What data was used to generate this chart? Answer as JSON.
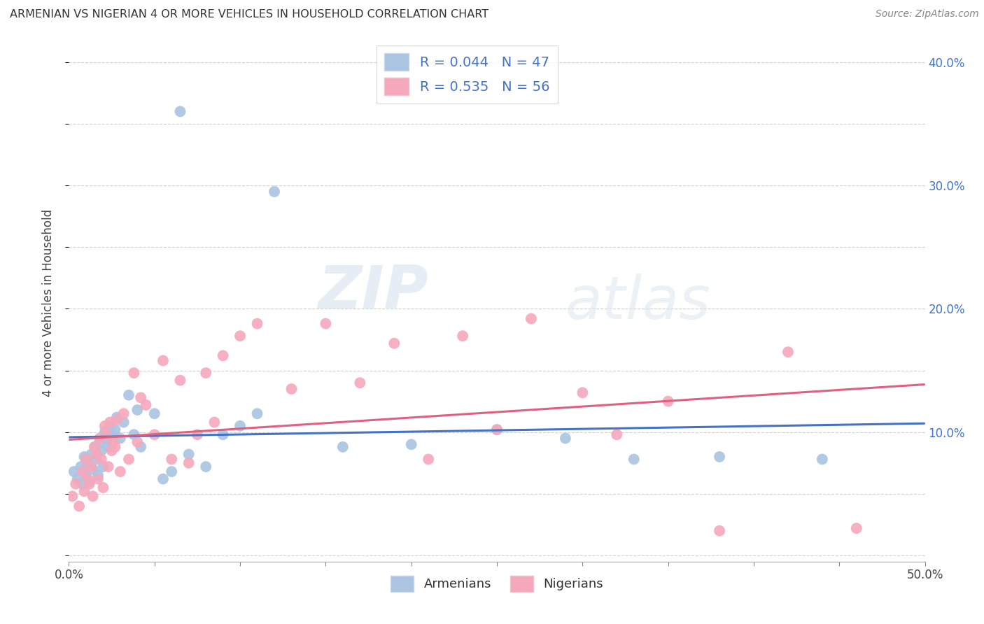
{
  "title": "ARMENIAN VS NIGERIAN 4 OR MORE VEHICLES IN HOUSEHOLD CORRELATION CHART",
  "source": "Source: ZipAtlas.com",
  "ylabel": "4 or more Vehicles in Household",
  "xlim": [
    0.0,
    0.5
  ],
  "ylim": [
    -0.005,
    0.415
  ],
  "armenian_R": 0.044,
  "armenian_N": 47,
  "nigerian_R": 0.535,
  "nigerian_N": 56,
  "armenian_color": "#aac4e2",
  "nigerian_color": "#f5a8bc",
  "armenian_line_color": "#4472c4",
  "nigerian_line_color": "#e06080",
  "watermark_zip": "ZIP",
  "watermark_atlas": "atlas",
  "legend_armenians": "Armenians",
  "legend_nigerians": "Nigerians",
  "armenian_x": [
    0.003,
    0.005,
    0.007,
    0.008,
    0.009,
    0.01,
    0.011,
    0.012,
    0.013,
    0.014,
    0.015,
    0.016,
    0.017,
    0.018,
    0.019,
    0.02,
    0.021,
    0.022,
    0.023,
    0.024,
    0.025,
    0.026,
    0.027,
    0.028,
    0.03,
    0.032,
    0.035,
    0.038,
    0.04,
    0.042,
    0.05,
    0.055,
    0.06,
    0.065,
    0.07,
    0.08,
    0.09,
    0.1,
    0.11,
    0.12,
    0.16,
    0.2,
    0.25,
    0.29,
    0.33,
    0.38,
    0.44
  ],
  "armenian_y": [
    0.068,
    0.062,
    0.072,
    0.058,
    0.08,
    0.065,
    0.075,
    0.06,
    0.082,
    0.07,
    0.088,
    0.078,
    0.065,
    0.092,
    0.085,
    0.072,
    0.1,
    0.095,
    0.088,
    0.105,
    0.092,
    0.098,
    0.102,
    0.112,
    0.095,
    0.108,
    0.13,
    0.098,
    0.118,
    0.088,
    0.115,
    0.062,
    0.068,
    0.36,
    0.082,
    0.072,
    0.098,
    0.105,
    0.115,
    0.295,
    0.088,
    0.09,
    0.102,
    0.095,
    0.078,
    0.08,
    0.078
  ],
  "nigerian_x": [
    0.002,
    0.004,
    0.006,
    0.008,
    0.009,
    0.01,
    0.011,
    0.012,
    0.013,
    0.014,
    0.015,
    0.016,
    0.017,
    0.018,
    0.019,
    0.02,
    0.021,
    0.022,
    0.023,
    0.024,
    0.025,
    0.026,
    0.027,
    0.028,
    0.03,
    0.032,
    0.035,
    0.038,
    0.04,
    0.042,
    0.045,
    0.05,
    0.055,
    0.06,
    0.065,
    0.07,
    0.075,
    0.08,
    0.085,
    0.09,
    0.1,
    0.11,
    0.13,
    0.15,
    0.17,
    0.19,
    0.21,
    0.23,
    0.25,
    0.27,
    0.3,
    0.32,
    0.35,
    0.38,
    0.42,
    0.46
  ],
  "nigerian_y": [
    0.048,
    0.058,
    0.04,
    0.068,
    0.052,
    0.078,
    0.062,
    0.058,
    0.072,
    0.048,
    0.088,
    0.082,
    0.062,
    0.095,
    0.078,
    0.055,
    0.105,
    0.098,
    0.072,
    0.108,
    0.085,
    0.092,
    0.088,
    0.11,
    0.068,
    0.115,
    0.078,
    0.148,
    0.092,
    0.128,
    0.122,
    0.098,
    0.158,
    0.078,
    0.142,
    0.075,
    0.098,
    0.148,
    0.108,
    0.162,
    0.178,
    0.188,
    0.135,
    0.188,
    0.14,
    0.172,
    0.078,
    0.178,
    0.102,
    0.192,
    0.132,
    0.098,
    0.125,
    0.02,
    0.165,
    0.022
  ]
}
